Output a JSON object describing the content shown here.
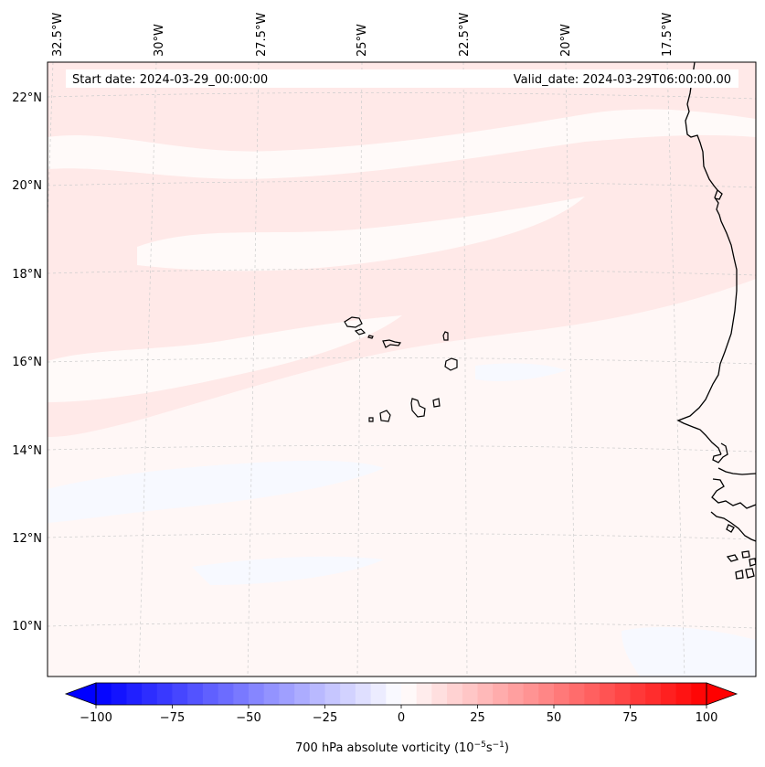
{
  "map": {
    "start_date": "Start date: 2024-03-29_00:00:00",
    "valid_date": "Valid_date: 2024-03-29T06:00:00.00",
    "lon_labels": [
      "32.5°W",
      "30°W",
      "27.5°W",
      "25°W",
      "22.5°W",
      "20°W",
      "17.5°W"
    ],
    "lat_labels": [
      "22°N",
      "20°N",
      "18°N",
      "16°N",
      "14°N",
      "12°N",
      "10°N"
    ],
    "features": [
      "Cape Verde islands",
      "West African coastline"
    ]
  },
  "colorbar": {
    "title": "700 hPa absolute vorticity (10",
    "title_exp1": "−5",
    "title_mid": "s",
    "title_exp2": "−1",
    "title_end": ")",
    "min": -100,
    "max": 100,
    "step": 5,
    "ticks": [
      "−100",
      "−75",
      "−50",
      "−25",
      "0",
      "25",
      "50",
      "75",
      "100"
    ],
    "tick_values": [
      -100,
      -75,
      -50,
      -25,
      0,
      25,
      50,
      75,
      100
    ],
    "color_low": "#0000ff",
    "color_mid": "#ffffff",
    "color_high": "#ff0000",
    "extend": "both"
  },
  "colors": {
    "background_field": "#fff7f6",
    "positive_band": "#ffe9e8",
    "light_band": "#fffaf9",
    "negative_patch": "#f7f9ff",
    "coastline": "#000000",
    "gridline": "#cccccc"
  }
}
